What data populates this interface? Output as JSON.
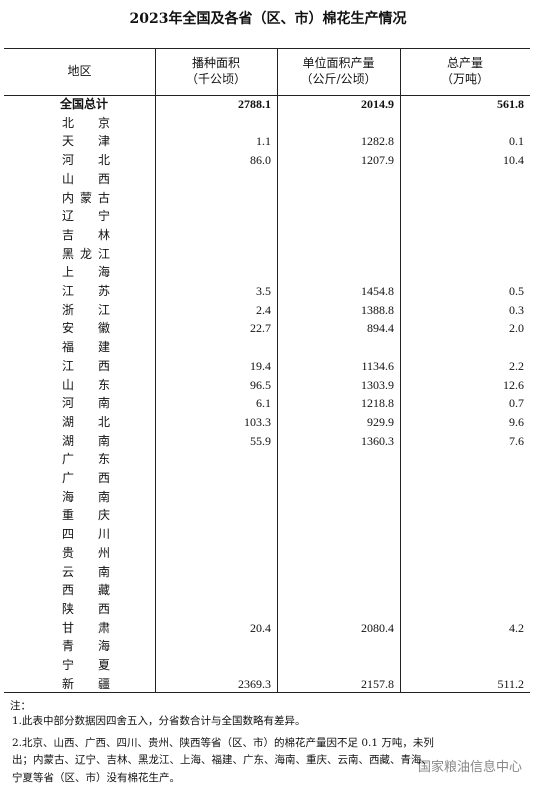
{
  "title": "2023年全国及各省（区、市）棉花生产情况",
  "table": {
    "columns": [
      {
        "name": "地区"
      },
      {
        "name": "播种面积",
        "unit": "（千公顷）"
      },
      {
        "name": "单位面积产量",
        "unit": "（公斤/公顷）"
      },
      {
        "name": "总产量",
        "unit": "（万吨）"
      }
    ],
    "rows": [
      [
        "全国总计",
        "2788.1",
        "2014.9",
        "561.8"
      ],
      [
        "北京",
        null,
        null,
        null
      ],
      [
        "天津",
        "1.1",
        "1282.8",
        "0.1"
      ],
      [
        "河北",
        "86.0",
        "1207.9",
        "10.4"
      ],
      [
        "山西",
        null,
        null,
        null
      ],
      [
        "内蒙古",
        null,
        null,
        null
      ],
      [
        "辽宁",
        null,
        null,
        null
      ],
      [
        "吉林",
        null,
        null,
        null
      ],
      [
        "黑龙江",
        null,
        null,
        null
      ],
      [
        "上海",
        null,
        null,
        null
      ],
      [
        "江苏",
        "3.5",
        "1454.8",
        "0.5"
      ],
      [
        "浙江",
        "2.4",
        "1388.8",
        "0.3"
      ],
      [
        "安徽",
        "22.7",
        "894.4",
        "2.0"
      ],
      [
        "福建",
        null,
        null,
        null
      ],
      [
        "江西",
        "19.4",
        "1134.6",
        "2.2"
      ],
      [
        "山东",
        "96.5",
        "1303.9",
        "12.6"
      ],
      [
        "河南",
        "6.1",
        "1218.8",
        "0.7"
      ],
      [
        "湖北",
        "103.3",
        "929.9",
        "9.6"
      ],
      [
        "湖南",
        "55.9",
        "1360.3",
        "7.6"
      ],
      [
        "广东",
        null,
        null,
        null
      ],
      [
        "广西",
        null,
        null,
        null
      ],
      [
        "海南",
        null,
        null,
        null
      ],
      [
        "重庆",
        null,
        null,
        null
      ],
      [
        "四川",
        null,
        null,
        null
      ],
      [
        "贵州",
        null,
        null,
        null
      ],
      [
        "云南",
        null,
        null,
        null
      ],
      [
        "西藏",
        null,
        null,
        null
      ],
      [
        "陕西",
        null,
        null,
        null
      ],
      [
        "甘肃",
        "20.4",
        "2080.4",
        "4.2"
      ],
      [
        "青海",
        null,
        null,
        null
      ],
      [
        "宁夏",
        null,
        null,
        null
      ],
      [
        "新疆",
        "2369.3",
        "2157.8",
        "511.2"
      ]
    ]
  },
  "notes": {
    "label": "注：",
    "lines": [
      "1.此表中部分数据因四舍五入，分省数合计与全国数略有差异。",
      "2.北京、山西、广西、四川、贵州、陕西等省（区、市）的棉花产量因不足 0.1 万吨，未列",
      "出；内蒙古、辽宁、吉林、黑龙江、上海、福建、广东、海南、重庆、云南、西藏、青海、",
      "宁夏等省（区、市）没有棉花生产。"
    ]
  },
  "watermark": "国家粮油信息中心"
}
